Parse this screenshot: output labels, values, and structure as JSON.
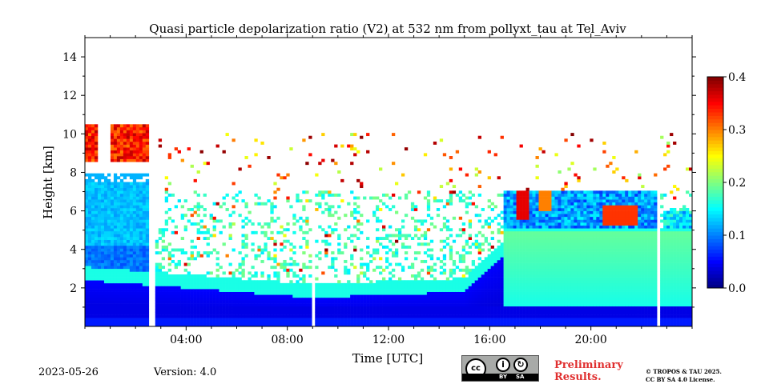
{
  "chart_data": {
    "type": "heatmap",
    "title": "Quasi particle depolarization ratio (V2) at 532 nm from pollyxt_tau at Tel_Aviv",
    "xlabel": "Time [UTC]",
    "ylabel": "Height [km]",
    "xlim_hours": [
      0,
      24
    ],
    "ylim_km": [
      0,
      15
    ],
    "x_tick_labels": [
      "04:00",
      "08:00",
      "12:00",
      "16:00",
      "20:00"
    ],
    "x_tick_hours": [
      4,
      8,
      12,
      16,
      20
    ],
    "y_ticks": [
      2,
      4,
      6,
      8,
      10,
      12,
      14
    ],
    "colorbar": {
      "min": 0.0,
      "max": 0.4,
      "ticks": [
        "0.0",
        "0.1",
        "0.2",
        "0.3",
        "0.4"
      ],
      "colormap": "jet"
    },
    "data_gaps_hours": [
      [
        2.55,
        2.72
      ],
      [
        8.95,
        9.1
      ],
      [
        22.65,
        22.78
      ]
    ],
    "grid": false
  },
  "footer": {
    "date": "2023-05-26",
    "version": "Version: 4.0",
    "license_badge": {
      "by": "BY",
      "sa": "SA"
    },
    "preliminary_line1": "Preliminary",
    "preliminary_line2": "Results.",
    "copyright_line1": "© TROPOS & TAU 2025.",
    "copyright_line2": "CC BY SA 4.0 License."
  },
  "colors": {
    "preliminary": "#e03030",
    "badge_bg": "#a8aaa8"
  }
}
